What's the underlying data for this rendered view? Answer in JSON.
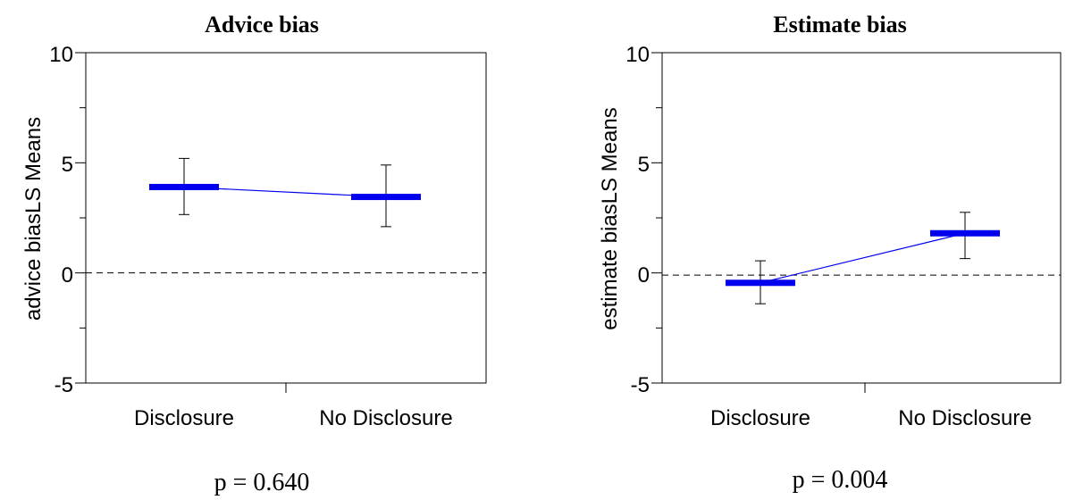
{
  "chart_data": [
    {
      "type": "line",
      "title": "Advice bias",
      "ylabel": "advice biasLS Means",
      "xlabel": "",
      "categories": [
        "Disclosure",
        "No Disclosure"
      ],
      "series": [
        {
          "values": [
            3.9,
            3.45
          ],
          "error_low": [
            2.65,
            2.1
          ],
          "error_high": [
            5.2,
            4.9
          ]
        }
      ],
      "ylim": [
        -5,
        10
      ],
      "yticks": [
        "10",
        "5",
        "0",
        "-5"
      ],
      "reference_line": 0,
      "grid": false,
      "annotation": "p = 0.640",
      "colors": {
        "series": "#0000ee",
        "error": "#000000",
        "reference": "#000000"
      }
    },
    {
      "type": "line",
      "title": "Estimate bias",
      "ylabel": "estimate biasLS Means",
      "xlabel": "",
      "categories": [
        "Disclosure",
        "No Disclosure"
      ],
      "series": [
        {
          "values": [
            -0.45,
            1.8
          ],
          "error_low": [
            -1.4,
            0.65
          ],
          "error_high": [
            0.55,
            2.75
          ]
        }
      ],
      "ylim": [
        -5,
        10
      ],
      "yticks": [
        "10",
        "5",
        "0",
        "-5"
      ],
      "reference_line": -0.1,
      "grid": false,
      "annotation": "p = 0.004",
      "colors": {
        "series": "#0000ee",
        "error": "#000000",
        "reference": "#000000"
      }
    }
  ]
}
